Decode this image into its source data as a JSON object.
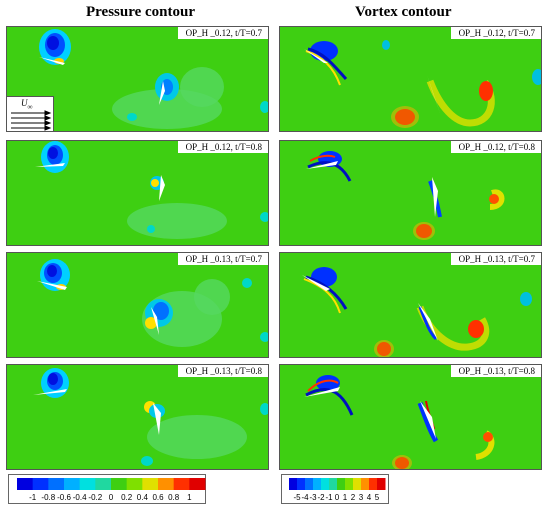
{
  "titles": {
    "left": "Pressure contour",
    "right": "Vortex contour"
  },
  "inflow_label": "U",
  "inflow_sub": "∞",
  "panels": [
    {
      "label": "OP_H _0.12, t/T=0.7"
    },
    {
      "label": "OP_H _0.12, t/T=0.7"
    },
    {
      "label": "OP_H _0.12, t/T=0.8"
    },
    {
      "label": "OP_H _0.12, t/T=0.8"
    },
    {
      "label": "OP_H _0.13, t/T=0.7"
    },
    {
      "label": "OP_H _0.13, t/T=0.7"
    },
    {
      "label": "OP_H _0.13, t/T=0.8"
    },
    {
      "label": "OP_H _0.13, t/T=0.8"
    }
  ],
  "pressure_colorbar": {
    "ticks": [
      "-1",
      "-0.8",
      "-0.6",
      "-0.4",
      "-0.2",
      "0",
      "0.2",
      "0.4",
      "0.6",
      "0.8",
      "1"
    ],
    "colors": [
      "#0000e0",
      "#0030ff",
      "#0070ff",
      "#00b0ff",
      "#00e0e0",
      "#20d8a0",
      "#3ecf12",
      "#7fe000",
      "#e0e000",
      "#ff9000",
      "#ff3000",
      "#e00000"
    ]
  },
  "vortex_colorbar": {
    "ticks": [
      "-5",
      "-4",
      "-3",
      "-2",
      "-1",
      "0",
      "1",
      "2",
      "3",
      "4",
      "5"
    ],
    "colors": [
      "#0000e0",
      "#0030ff",
      "#0070ff",
      "#00b0ff",
      "#00e0e0",
      "#20d8a0",
      "#3ecf12",
      "#7fe000",
      "#e0e000",
      "#ff9000",
      "#ff3000",
      "#e00000"
    ]
  }
}
